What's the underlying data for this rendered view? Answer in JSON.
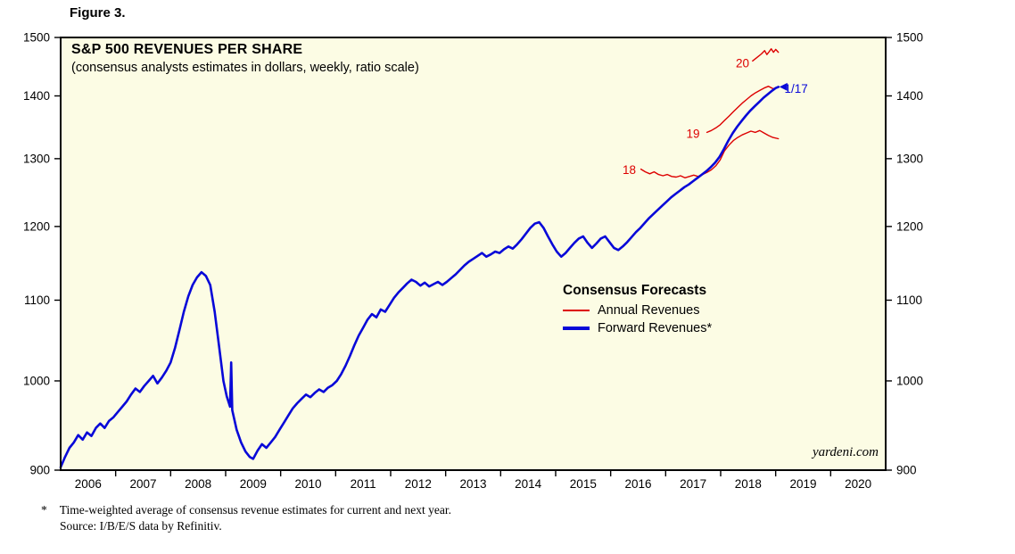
{
  "figure_label": "Figure 3.",
  "watermark": "yardeni.com",
  "footnotes": {
    "asterisk": "*",
    "line1": "Time-weighted average of consensus revenue estimates for current and next year.",
    "line2": "Source: I/B/E/S data by Refinitiv."
  },
  "chart_data": {
    "type": "line",
    "title": "S&P 500 REVENUES PER SHARE",
    "subtitle": "(consensus analysts estimates in dollars, weekly, ratio scale)",
    "y_scale": "log",
    "grid": false,
    "y_range": [
      900,
      1500
    ],
    "x_range": [
      2006.0,
      2021.0
    ],
    "y_ticks": [
      900,
      1000,
      1100,
      1200,
      1300,
      1400,
      1500
    ],
    "x_tick_years": [
      2006,
      2007,
      2008,
      2009,
      2010,
      2011,
      2012,
      2013,
      2014,
      2015,
      2016,
      2017,
      2018,
      2019,
      2020
    ],
    "colors": {
      "forward": "#0808d8",
      "annual": "#dd0000",
      "plot_bg": "#fcfce4",
      "axis": "#000000"
    },
    "legend": {
      "title": "Consensus Forecasts",
      "position": "inside-right-middle",
      "entries": [
        {
          "label": "Annual Revenues",
          "color": "#dd0000",
          "thickness": 2
        },
        {
          "label": "Forward Revenues*",
          "color": "#0808d8",
          "thickness": 4
        }
      ]
    },
    "annotations": [
      {
        "text": "18",
        "t": 2016.46,
        "v": 1283,
        "color": "#dd0000",
        "anchor": "end"
      },
      {
        "text": "19",
        "t": 2017.62,
        "v": 1339,
        "color": "#dd0000",
        "anchor": "end"
      },
      {
        "text": "20",
        "t": 2018.52,
        "v": 1455,
        "color": "#dd0000",
        "anchor": "end"
      },
      {
        "text": "1/17",
        "t": 2019.16,
        "v": 1412,
        "color": "#0808d8",
        "anchor": "start"
      }
    ],
    "series": [
      {
        "id": "annual_2018",
        "name": "Annual Revenues 2018",
        "color": "#dd0000",
        "width": 1.4,
        "points": [
          [
            2016.55,
            1284
          ],
          [
            2016.63,
            1280
          ],
          [
            2016.71,
            1277
          ],
          [
            2016.79,
            1280
          ],
          [
            2016.87,
            1276
          ],
          [
            2016.95,
            1274
          ],
          [
            2017.03,
            1276
          ],
          [
            2017.11,
            1273
          ],
          [
            2017.19,
            1272
          ],
          [
            2017.27,
            1274
          ],
          [
            2017.35,
            1271
          ],
          [
            2017.43,
            1273
          ],
          [
            2017.51,
            1275
          ],
          [
            2017.59,
            1273
          ],
          [
            2017.67,
            1276
          ],
          [
            2017.75,
            1279
          ],
          [
            2017.83,
            1283
          ],
          [
            2017.91,
            1289
          ],
          [
            2017.99,
            1298
          ],
          [
            2018.07,
            1312
          ],
          [
            2018.15,
            1321
          ],
          [
            2018.23,
            1328
          ],
          [
            2018.31,
            1333
          ],
          [
            2018.39,
            1337
          ],
          [
            2018.47,
            1340
          ],
          [
            2018.55,
            1343
          ],
          [
            2018.63,
            1341
          ],
          [
            2018.71,
            1344
          ],
          [
            2018.79,
            1340
          ],
          [
            2018.87,
            1336
          ],
          [
            2018.95,
            1333
          ],
          [
            2019.05,
            1331
          ]
        ]
      },
      {
        "id": "annual_2019",
        "name": "Annual Revenues 2019",
        "color": "#dd0000",
        "width": 1.4,
        "points": [
          [
            2017.75,
            1341
          ],
          [
            2017.83,
            1344
          ],
          [
            2017.91,
            1348
          ],
          [
            2017.99,
            1353
          ],
          [
            2018.07,
            1360
          ],
          [
            2018.15,
            1367
          ],
          [
            2018.23,
            1374
          ],
          [
            2018.31,
            1381
          ],
          [
            2018.39,
            1388
          ],
          [
            2018.47,
            1394
          ],
          [
            2018.55,
            1400
          ],
          [
            2018.63,
            1405
          ],
          [
            2018.71,
            1409
          ],
          [
            2018.79,
            1413
          ],
          [
            2018.87,
            1416
          ],
          [
            2018.95,
            1412
          ],
          [
            2019.05,
            1414
          ]
        ]
      },
      {
        "id": "annual_2020",
        "name": "Annual Revenues 2020",
        "color": "#dd0000",
        "width": 1.4,
        "points": [
          [
            2018.58,
            1459
          ],
          [
            2018.66,
            1465
          ],
          [
            2018.74,
            1471
          ],
          [
            2018.8,
            1477
          ],
          [
            2018.84,
            1470
          ],
          [
            2018.88,
            1475
          ],
          [
            2018.92,
            1480
          ],
          [
            2018.96,
            1474
          ],
          [
            2019.0,
            1479
          ],
          [
            2019.05,
            1474
          ]
        ]
      },
      {
        "id": "forward",
        "name": "Forward Revenues*",
        "color": "#0808d8",
        "width": 2.6,
        "end_marker": true,
        "points": [
          [
            2006.0,
            903
          ],
          [
            2006.08,
            914
          ],
          [
            2006.16,
            924
          ],
          [
            2006.24,
            930
          ],
          [
            2006.32,
            938
          ],
          [
            2006.4,
            933
          ],
          [
            2006.48,
            941
          ],
          [
            2006.56,
            937
          ],
          [
            2006.64,
            946
          ],
          [
            2006.72,
            951
          ],
          [
            2006.8,
            946
          ],
          [
            2006.88,
            954
          ],
          [
            2006.96,
            958
          ],
          [
            2007.04,
            964
          ],
          [
            2007.12,
            970
          ],
          [
            2007.2,
            976
          ],
          [
            2007.28,
            984
          ],
          [
            2007.36,
            991
          ],
          [
            2007.44,
            987
          ],
          [
            2007.52,
            994
          ],
          [
            2007.6,
            1000
          ],
          [
            2007.68,
            1006
          ],
          [
            2007.76,
            997
          ],
          [
            2007.84,
            1004
          ],
          [
            2007.92,
            1012
          ],
          [
            2008.0,
            1022
          ],
          [
            2008.08,
            1040
          ],
          [
            2008.16,
            1062
          ],
          [
            2008.24,
            1085
          ],
          [
            2008.32,
            1105
          ],
          [
            2008.4,
            1120
          ],
          [
            2008.48,
            1130
          ],
          [
            2008.56,
            1137
          ],
          [
            2008.64,
            1132
          ],
          [
            2008.72,
            1120
          ],
          [
            2008.8,
            1085
          ],
          [
            2008.88,
            1042
          ],
          [
            2008.96,
            1000
          ],
          [
            2009.02,
            982
          ],
          [
            2009.08,
            970
          ],
          [
            2009.1,
            1022
          ],
          [
            2009.12,
            966
          ],
          [
            2009.2,
            944
          ],
          [
            2009.28,
            930
          ],
          [
            2009.36,
            920
          ],
          [
            2009.44,
            914
          ],
          [
            2009.5,
            912
          ],
          [
            2009.58,
            921
          ],
          [
            2009.66,
            928
          ],
          [
            2009.74,
            924
          ],
          [
            2009.82,
            930
          ],
          [
            2009.9,
            936
          ],
          [
            2009.98,
            944
          ],
          [
            2010.06,
            952
          ],
          [
            2010.14,
            960
          ],
          [
            2010.22,
            968
          ],
          [
            2010.3,
            974
          ],
          [
            2010.38,
            979
          ],
          [
            2010.46,
            984
          ],
          [
            2010.54,
            981
          ],
          [
            2010.62,
            986
          ],
          [
            2010.7,
            990
          ],
          [
            2010.78,
            987
          ],
          [
            2010.86,
            992
          ],
          [
            2010.94,
            995
          ],
          [
            2011.02,
            1000
          ],
          [
            2011.1,
            1008
          ],
          [
            2011.18,
            1018
          ],
          [
            2011.26,
            1030
          ],
          [
            2011.34,
            1043
          ],
          [
            2011.42,
            1055
          ],
          [
            2011.5,
            1065
          ],
          [
            2011.58,
            1075
          ],
          [
            2011.66,
            1082
          ],
          [
            2011.74,
            1078
          ],
          [
            2011.82,
            1088
          ],
          [
            2011.9,
            1085
          ],
          [
            2011.98,
            1094
          ],
          [
            2012.06,
            1103
          ],
          [
            2012.14,
            1110
          ],
          [
            2012.22,
            1116
          ],
          [
            2012.3,
            1122
          ],
          [
            2012.38,
            1127
          ],
          [
            2012.46,
            1124
          ],
          [
            2012.54,
            1119
          ],
          [
            2012.62,
            1123
          ],
          [
            2012.7,
            1118
          ],
          [
            2012.78,
            1121
          ],
          [
            2012.86,
            1124
          ],
          [
            2012.94,
            1120
          ],
          [
            2013.02,
            1124
          ],
          [
            2013.1,
            1129
          ],
          [
            2013.18,
            1134
          ],
          [
            2013.26,
            1140
          ],
          [
            2013.34,
            1146
          ],
          [
            2013.42,
            1151
          ],
          [
            2013.5,
            1155
          ],
          [
            2013.58,
            1159
          ],
          [
            2013.66,
            1163
          ],
          [
            2013.74,
            1158
          ],
          [
            2013.82,
            1161
          ],
          [
            2013.9,
            1165
          ],
          [
            2013.98,
            1163
          ],
          [
            2014.06,
            1168
          ],
          [
            2014.14,
            1172
          ],
          [
            2014.22,
            1169
          ],
          [
            2014.3,
            1175
          ],
          [
            2014.38,
            1182
          ],
          [
            2014.46,
            1190
          ],
          [
            2014.54,
            1198
          ],
          [
            2014.62,
            1204
          ],
          [
            2014.7,
            1206
          ],
          [
            2014.78,
            1198
          ],
          [
            2014.86,
            1186
          ],
          [
            2014.94,
            1175
          ],
          [
            2015.02,
            1165
          ],
          [
            2015.1,
            1158
          ],
          [
            2015.18,
            1163
          ],
          [
            2015.26,
            1170
          ],
          [
            2015.34,
            1177
          ],
          [
            2015.42,
            1183
          ],
          [
            2015.5,
            1186
          ],
          [
            2015.58,
            1177
          ],
          [
            2015.66,
            1170
          ],
          [
            2015.74,
            1176
          ],
          [
            2015.82,
            1183
          ],
          [
            2015.9,
            1186
          ],
          [
            2015.98,
            1178
          ],
          [
            2016.06,
            1170
          ],
          [
            2016.14,
            1167
          ],
          [
            2016.22,
            1172
          ],
          [
            2016.3,
            1178
          ],
          [
            2016.38,
            1185
          ],
          [
            2016.46,
            1192
          ],
          [
            2016.54,
            1198
          ],
          [
            2016.62,
            1205
          ],
          [
            2016.7,
            1212
          ],
          [
            2016.78,
            1218
          ],
          [
            2016.86,
            1224
          ],
          [
            2016.94,
            1230
          ],
          [
            2017.02,
            1236
          ],
          [
            2017.1,
            1242
          ],
          [
            2017.18,
            1247
          ],
          [
            2017.26,
            1252
          ],
          [
            2017.34,
            1257
          ],
          [
            2017.42,
            1261
          ],
          [
            2017.5,
            1266
          ],
          [
            2017.58,
            1271
          ],
          [
            2017.66,
            1276
          ],
          [
            2017.74,
            1281
          ],
          [
            2017.82,
            1287
          ],
          [
            2017.9,
            1294
          ],
          [
            2017.98,
            1303
          ],
          [
            2018.06,
            1315
          ],
          [
            2018.14,
            1328
          ],
          [
            2018.22,
            1340
          ],
          [
            2018.3,
            1350
          ],
          [
            2018.38,
            1359
          ],
          [
            2018.46,
            1368
          ],
          [
            2018.54,
            1376
          ],
          [
            2018.62,
            1383
          ],
          [
            2018.7,
            1390
          ],
          [
            2018.78,
            1397
          ],
          [
            2018.86,
            1403
          ],
          [
            2018.94,
            1409
          ],
          [
            2019.0,
            1413
          ],
          [
            2019.05,
            1415
          ]
        ]
      }
    ]
  }
}
